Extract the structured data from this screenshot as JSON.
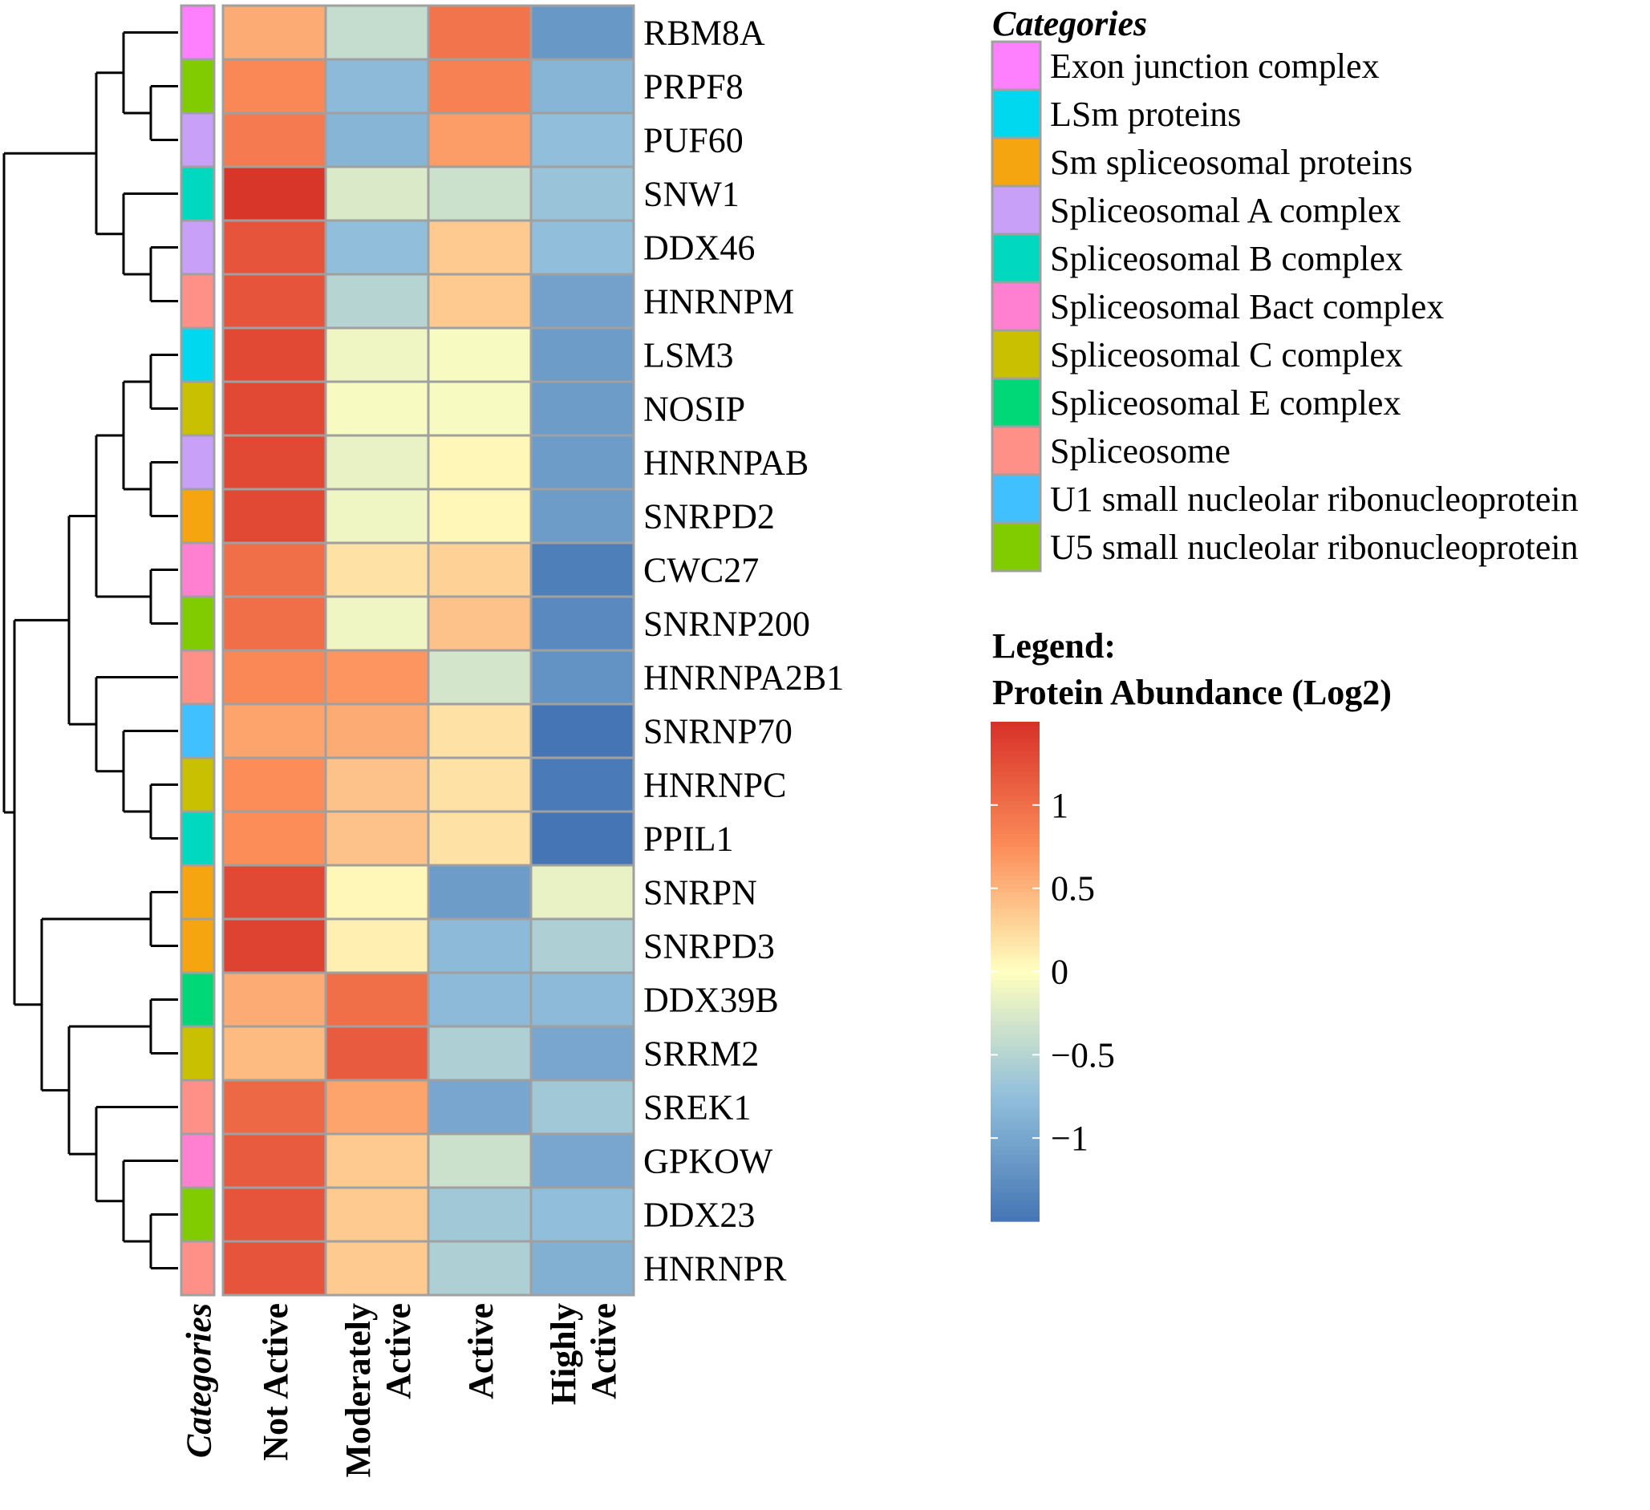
{
  "chart_data": {
    "type": "heatmap",
    "title": "",
    "rows": [
      "RBM8A",
      "PRPF8",
      "PUF60",
      "SNW1",
      "DDX46",
      "HNRNPM",
      "LSM3",
      "NOSIP",
      "HNRNPAB",
      "SNRPD2",
      "CWC27",
      "SNRNP200",
      "HNRNPA2B1",
      "SNRNP70",
      "HNRNPC",
      "PPIL1",
      "SNRPN",
      "SNRPD3",
      "DDX39B",
      "SRRM2",
      "SREK1",
      "GPKOW",
      "DDX23",
      "HNRNPR"
    ],
    "columns": [
      "Not Active",
      "Moderately Active",
      "Active",
      "Highly Active"
    ],
    "annotation_column_label": "Categories",
    "row_categories": [
      "Exon junction complex",
      "U5 small nucleolar ribonucleoprotein",
      "Spliceosomal A complex",
      "Spliceosomal B complex",
      "Spliceosomal A complex",
      "Spliceosome",
      "LSm proteins",
      "Spliceosomal C complex",
      "Spliceosomal A complex",
      "Sm spliceosomal proteins",
      "Spliceosomal Bact complex",
      "U5 small nucleolar ribonucleoprotein",
      "Spliceosome",
      "U1 small nucleolar ribonucleoprotein",
      "Spliceosomal C complex",
      "Spliceosomal B complex",
      "Sm spliceosomal proteins",
      "Sm spliceosomal proteins",
      "Spliceosomal E complex",
      "Spliceosomal C complex",
      "Spliceosome",
      "Spliceosomal Bact complex",
      "U5 small nucleolar ribonucleoprotein",
      "Spliceosome"
    ],
    "values": [
      [
        0.55,
        -0.4,
        0.95,
        -1.15
      ],
      [
        0.8,
        -0.8,
        0.85,
        -0.85
      ],
      [
        0.9,
        -0.85,
        0.65,
        -0.75
      ],
      [
        1.45,
        -0.25,
        -0.35,
        -0.7
      ],
      [
        1.2,
        -0.75,
        0.35,
        -0.75
      ],
      [
        1.2,
        -0.5,
        0.35,
        -1.05
      ],
      [
        1.3,
        -0.1,
        -0.05,
        -1.1
      ],
      [
        1.3,
        -0.05,
        -0.05,
        -1.1
      ],
      [
        1.3,
        -0.15,
        0.05,
        -1.1
      ],
      [
        1.3,
        -0.1,
        0.05,
        -1.1
      ],
      [
        1.0,
        0.2,
        0.3,
        -1.4
      ],
      [
        1.0,
        -0.1,
        0.4,
        -1.3
      ],
      [
        0.8,
        0.7,
        -0.3,
        -1.2
      ],
      [
        0.6,
        0.55,
        0.2,
        -1.55
      ],
      [
        0.75,
        0.4,
        0.2,
        -1.45
      ],
      [
        0.75,
        0.4,
        0.2,
        -1.5
      ],
      [
        1.3,
        0.05,
        -1.1,
        -0.15
      ],
      [
        1.35,
        0.1,
        -0.8,
        -0.55
      ],
      [
        0.55,
        1.0,
        -0.8,
        -0.8
      ],
      [
        0.45,
        1.15,
        -0.55,
        -1.0
      ],
      [
        1.05,
        0.6,
        -1.0,
        -0.65
      ],
      [
        1.15,
        0.35,
        -0.35,
        -1.0
      ],
      [
        1.2,
        0.35,
        -0.65,
        -0.75
      ],
      [
        1.2,
        0.35,
        -0.55,
        -0.9
      ]
    ],
    "categories_legend": {
      "title": "Categories",
      "items": [
        {
          "label": "Exon junction complex",
          "color": "#FF80FF"
        },
        {
          "label": "LSm proteins",
          "color": "#00D8F0"
        },
        {
          "label": "Sm spliceosomal proteins",
          "color": "#F5A510"
        },
        {
          "label": "Spliceosomal A complex",
          "color": "#C8A0F8"
        },
        {
          "label": "Spliceosomal B complex",
          "color": "#00D8C0"
        },
        {
          "label": "Spliceosomal Bact complex",
          "color": "#FF80D0"
        },
        {
          "label": "Spliceosomal C complex",
          "color": "#C8C000"
        },
        {
          "label": "Spliceosomal E complex",
          "color": "#00D878"
        },
        {
          "label": "Spliceosome",
          "color": "#FF9088"
        },
        {
          "label": "U1 small nucleolar ribonucleoprotein",
          "color": "#40C0FF"
        },
        {
          "label": "U5 small nucleolar ribonucleoprotein",
          "color": "#80CC00"
        }
      ]
    },
    "color_legend": {
      "heading_1": "Legend:",
      "heading_2": "Protein Abundance (Log2)",
      "range": [
        -1.5,
        1.5
      ],
      "ticks": [
        1,
        0.5,
        0,
        -0.5,
        -1
      ],
      "tick_labels": [
        "1",
        "0.5",
        "0",
        "−0.5",
        "−1"
      ],
      "stops": [
        {
          "value": -1.5,
          "color": "#4575B4"
        },
        {
          "value": -0.75,
          "color": "#91BFDB"
        },
        {
          "value": 0,
          "color": "#FFFFBF"
        },
        {
          "value": 0.75,
          "color": "#FC8D59"
        },
        {
          "value": 1.5,
          "color": "#D73027"
        }
      ]
    },
    "dendrogram": {
      "node": "root",
      "children": [
        {
          "children": [
            {
              "children": [
                {
                  "leaf": "RBM8A"
                },
                {
                  "children": [
                    {
                      "leaf": "PRPF8"
                    },
                    {
                      "leaf": "PUF60"
                    }
                  ]
                }
              ]
            },
            {
              "children": [
                {
                  "leaf": "SNW1"
                },
                {
                  "children": [
                    {
                      "leaf": "DDX46"
                    },
                    {
                      "leaf": "HNRNPM"
                    }
                  ]
                }
              ]
            }
          ]
        },
        {
          "children": [
            {
              "children": [
                {
                  "children": [
                    {
                      "children": [
                        {
                          "children": [
                            {
                              "leaf": "LSM3"
                            },
                            {
                              "leaf": "NOSIP"
                            }
                          ]
                        },
                        {
                          "children": [
                            {
                              "leaf": "HNRNPAB"
                            },
                            {
                              "leaf": "SNRPD2"
                            }
                          ]
                        }
                      ]
                    },
                    {
                      "children": [
                        {
                          "leaf": "CWC27"
                        },
                        {
                          "leaf": "SNRNP200"
                        }
                      ]
                    }
                  ]
                },
                {
                  "children": [
                    {
                      "leaf": "HNRNPA2B1"
                    },
                    {
                      "children": [
                        {
                          "leaf": "SNRNP70"
                        },
                        {
                          "children": [
                            {
                              "leaf": "HNRNPC"
                            },
                            {
                              "leaf": "PPIL1"
                            }
                          ]
                        }
                      ]
                    }
                  ]
                }
              ]
            },
            {
              "children": [
                {
                  "children": [
                    {
                      "leaf": "SNRPN"
                    },
                    {
                      "leaf": "SNRPD3"
                    }
                  ]
                },
                {
                  "children": [
                    {
                      "children": [
                        {
                          "leaf": "DDX39B"
                        },
                        {
                          "leaf": "SRRM2"
                        }
                      ]
                    },
                    {
                      "children": [
                        {
                          "leaf": "SREK1"
                        },
                        {
                          "children": [
                            {
                              "leaf": "GPKOW"
                            },
                            {
                              "children": [
                                {
                                  "leaf": "DDX23"
                                },
                                {
                                  "leaf": "HNRNPR"
                                }
                              ]
                            }
                          ]
                        }
                      ]
                    }
                  ]
                }
              ]
            }
          ]
        }
      ]
    }
  }
}
